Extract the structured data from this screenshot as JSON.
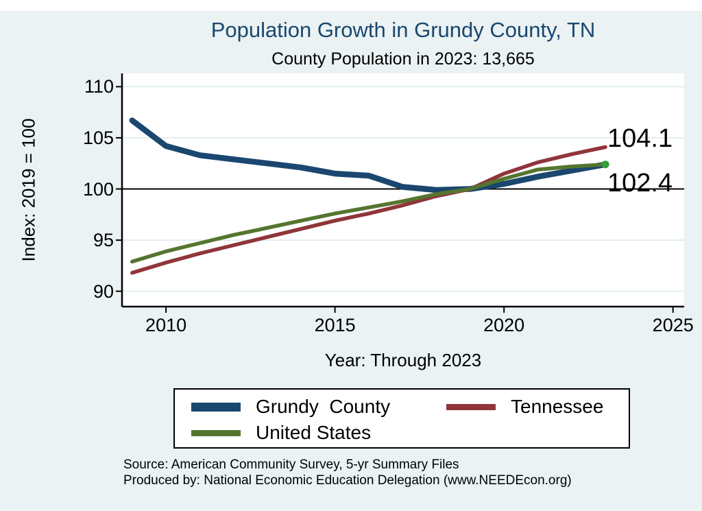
{
  "header": {
    "title": "Population Growth in Grundy County, TN",
    "subtitle": "County Population in 2023: 13,665"
  },
  "chart_data": {
    "type": "line",
    "title": "Population Growth in Grundy County, TN",
    "subtitle": "County Population in 2023: 13,665",
    "xlabel": "Year: Through 2023",
    "ylabel": "Index: 2019 = 100",
    "x": [
      2009,
      2010,
      2011,
      2012,
      2013,
      2014,
      2015,
      2016,
      2017,
      2018,
      2019,
      2020,
      2021,
      2022,
      2023
    ],
    "series": [
      {
        "name": "Grundy County",
        "color": "#1A476F",
        "line_width": 8.5,
        "values": [
          106.7,
          104.2,
          103.3,
          102.9,
          102.5,
          102.1,
          101.5,
          101.3,
          100.2,
          99.9,
          100.0,
          100.5,
          101.2,
          101.8,
          102.4
        ]
      },
      {
        "name": "Tennessee",
        "color": "#90353B",
        "line_width": 5.5,
        "values": [
          91.8,
          92.8,
          93.7,
          94.5,
          95.3,
          96.1,
          96.9,
          97.6,
          98.4,
          99.3,
          100.0,
          101.5,
          102.6,
          103.4,
          104.1
        ]
      },
      {
        "name": "United States",
        "color": "#55752F",
        "line_width": 5.5,
        "end_marker": true,
        "marker_color": "#379E37",
        "values": [
          92.9,
          93.9,
          94.7,
          95.5,
          96.2,
          96.9,
          97.6,
          98.2,
          98.8,
          99.5,
          100.0,
          101.0,
          101.9,
          102.2,
          102.4
        ]
      }
    ],
    "xticks": [
      2010,
      2015,
      2020,
      2025
    ],
    "yticks": [
      90,
      95,
      100,
      105,
      110
    ],
    "xlim": [
      2008.7,
      2025.33
    ],
    "ylim": [
      88.5,
      111.3
    ],
    "ref_line": 100,
    "grid": true,
    "legend_position": "bottom",
    "end_labels": [
      {
        "text": "104.1",
        "series": "Tennessee"
      },
      {
        "text": "102.4",
        "series": "Grundy County"
      }
    ]
  },
  "legend": {
    "items": [
      {
        "label": "Grundy  County"
      },
      {
        "label": "Tennessee"
      },
      {
        "label": "United States"
      }
    ]
  },
  "footer": {
    "source": "Source: American Community Survey, 5-yr Summary Files",
    "produced_by": "Produced by: National Economic Education Delegation (www.NEEDEcon.org)"
  },
  "colors": {
    "background": "#EAF2F3",
    "plot_background": "#FFFFFF",
    "grid": "#E2EDEF",
    "axis": "#000000",
    "ref_line": "#000000",
    "title": "#1A476F"
  }
}
